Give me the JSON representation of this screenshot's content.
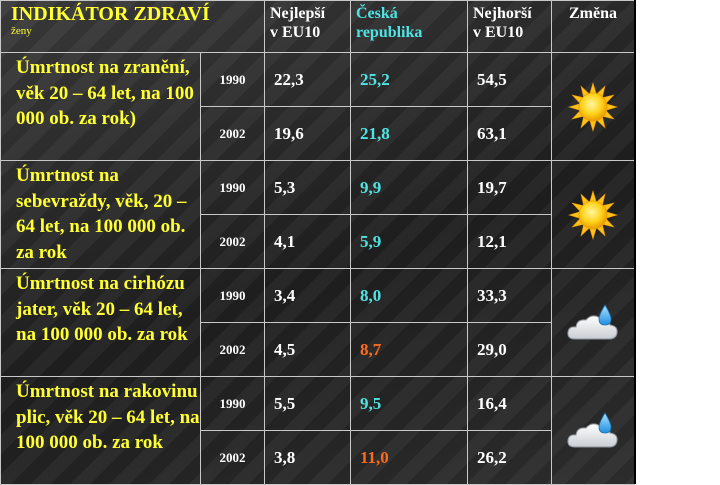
{
  "header": {
    "title": "INDIKÁTOR ZDRAVÍ",
    "subtitle": "ženy",
    "col_best_line1": "Nejlepší",
    "col_best_line2": "v EU10",
    "col_cz_line1": "Česká",
    "col_cz_line2": "republika",
    "col_worst_line1": "Nejhorší",
    "col_worst_line2": "v EU10",
    "col_change": "Změna"
  },
  "indicators": [
    {
      "label": "Úmrtnost na zranění, věk 20 – 64 let, na 100 000 ob. za rok)",
      "change_icon": "sun-icon",
      "rows": [
        {
          "year": "1990",
          "best": "22,3",
          "cz": "25,2",
          "worst": "54,5"
        },
        {
          "year": "2002",
          "best": "19,6",
          "cz": "21,8",
          "worst": "63,1"
        }
      ]
    },
    {
      "label": "Úmrtnost na sebevraždy, věk, 20 – 64 let, na 100 000 ob. za rok",
      "change_icon": "sun-icon",
      "rows": [
        {
          "year": "1990",
          "best": "5,3",
          "cz": "9,9",
          "worst": "19,7"
        },
        {
          "year": "2002",
          "best": "4,1",
          "cz": "5,9",
          "worst": "12,1"
        }
      ]
    },
    {
      "label": "Úmrtnost na cirhózu jater, věk 20 – 64 let, na 100 000 ob. za rok",
      "change_icon": "rain-cloud-icon",
      "rows": [
        {
          "year": "1990",
          "best": "3,4",
          "cz": "8,0",
          "worst": "33,3"
        },
        {
          "year": "2002",
          "best": "4,5",
          "cz": "8,7",
          "worst": "29,0",
          "cz_worse": true
        }
      ]
    },
    {
      "label": "Úmrtnost na rakovinu plic, věk 20 – 64 let, na 100 000 ob. za rok",
      "change_icon": "rain-cloud-icon",
      "rows": [
        {
          "year": "1990",
          "best": "5,5",
          "cz": "9,5",
          "worst": "16,4"
        },
        {
          "year": "2002",
          "best": "3,8",
          "cz": "11,0",
          "worst": "26,2",
          "cz_worse": true
        }
      ]
    }
  ],
  "colors": {
    "indicator_text": "#ffff33",
    "cz_value": "#4fe3e3",
    "cz_worse_value": "#ff6a1a"
  }
}
